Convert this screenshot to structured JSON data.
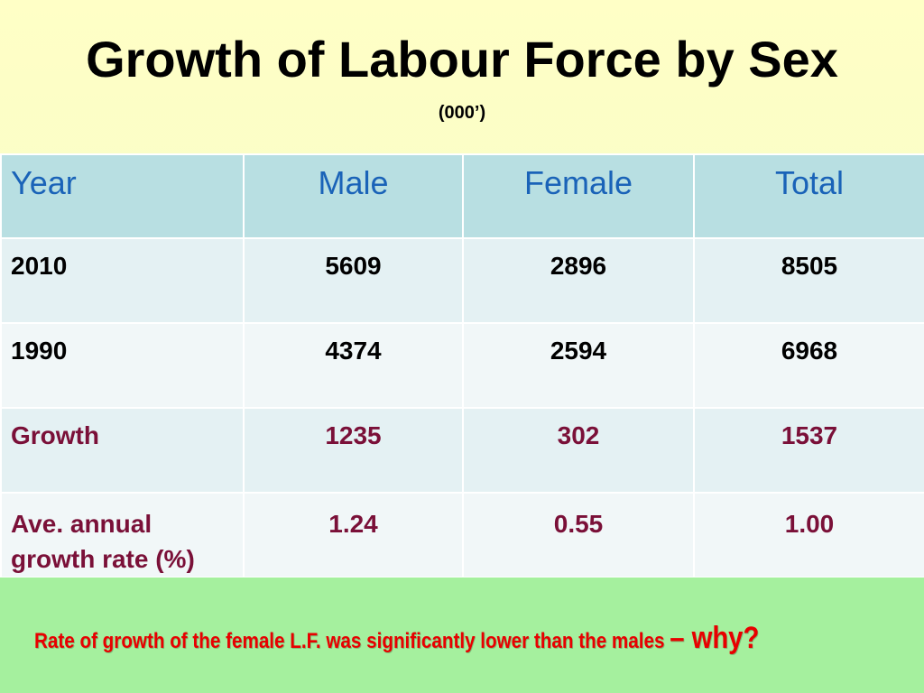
{
  "slide": {
    "title": "Growth of Labour Force by Sex",
    "subtitle": "(000’)"
  },
  "table": {
    "headers": [
      "Year",
      "Male",
      "Female",
      "Total"
    ],
    "rows": [
      {
        "label": "2010",
        "male": "5609",
        "female": "2896",
        "total": "8505"
      },
      {
        "label": "1990",
        "male": "4374",
        "female": "2594",
        "total": "6968"
      },
      {
        "label": "Growth",
        "male": "1235",
        "female": "302",
        "total": "1537"
      },
      {
        "label": "Ave. annual growth rate (%)",
        "male": "1.24",
        "female": "0.55",
        "total": "1.00"
      }
    ]
  },
  "note": {
    "text": "Rate of growth of the female L.F. was significantly lower than the males",
    "emphasis": "– why?"
  },
  "colors": {
    "header_text": "#1a63b8",
    "highlight_text": "#7a1038",
    "note_text": "#e80000",
    "header_bg": "#b8dfe2",
    "bottom_band": "#a5f09e"
  }
}
